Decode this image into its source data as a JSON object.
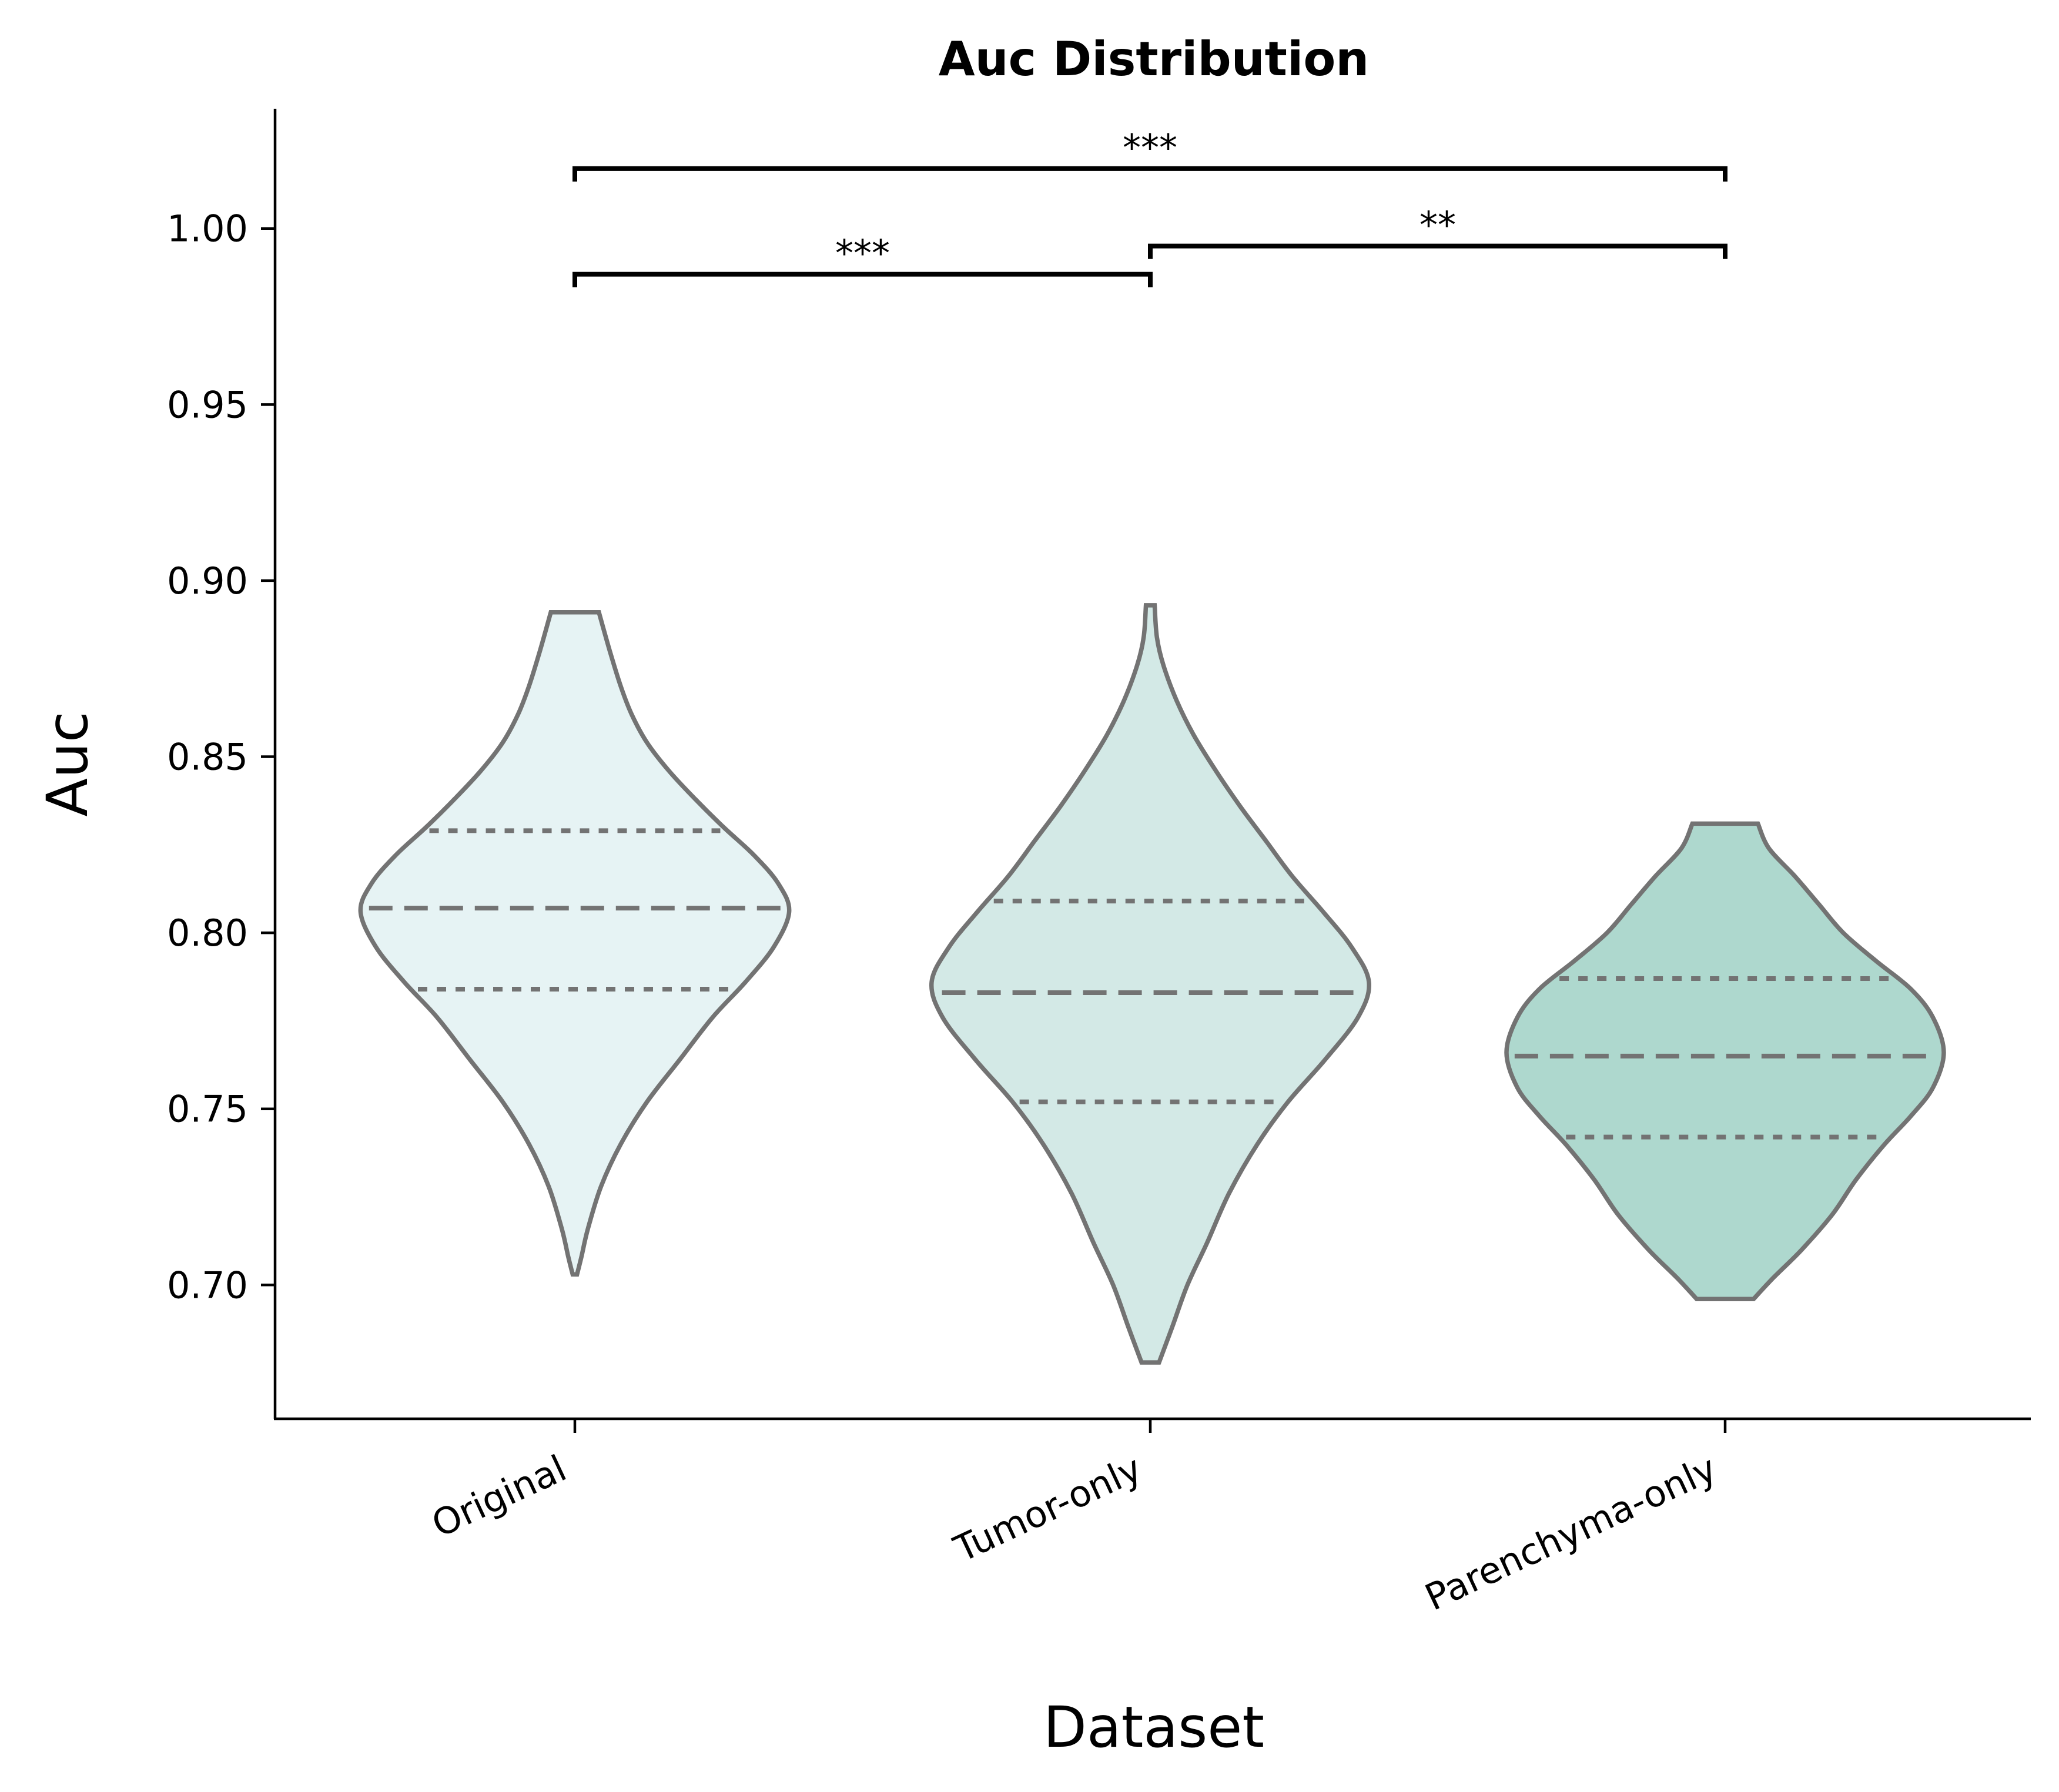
{
  "chart_data": {
    "type": "violin",
    "title": "Auc Distribution",
    "xlabel": "Dataset",
    "ylabel": "Auc",
    "ylim": [
      0.662,
      1.034
    ],
    "yticks": [
      "0.70",
      "0.75",
      "0.80",
      "0.85",
      "0.90",
      "0.95",
      "1.00"
    ],
    "grid": false,
    "categories": [
      "Original",
      "Tumor-only",
      "Parenchyma-only"
    ],
    "series": [
      {
        "category": "Original",
        "color": "#e6f3f4",
        "min": 0.703,
        "max": 0.891,
        "q1": 0.784,
        "median": 0.807,
        "q3": 0.829,
        "density_profile": [
          [
            0.703,
            0.01
          ],
          [
            0.708,
            0.03
          ],
          [
            0.716,
            0.06
          ],
          [
            0.728,
            0.12
          ],
          [
            0.74,
            0.21
          ],
          [
            0.752,
            0.33
          ],
          [
            0.764,
            0.48
          ],
          [
            0.776,
            0.63
          ],
          [
            0.786,
            0.78
          ],
          [
            0.796,
            0.91
          ],
          [
            0.806,
            0.98
          ],
          [
            0.814,
            0.93
          ],
          [
            0.822,
            0.82
          ],
          [
            0.83,
            0.68
          ],
          [
            0.838,
            0.55
          ],
          [
            0.846,
            0.43
          ],
          [
            0.854,
            0.33
          ],
          [
            0.862,
            0.26
          ],
          [
            0.87,
            0.21
          ],
          [
            0.88,
            0.16
          ],
          [
            0.891,
            0.11
          ]
        ]
      },
      {
        "category": "Tumor-only",
        "color": "#d3e9e6",
        "min": 0.678,
        "max": 0.893,
        "q1": 0.752,
        "median": 0.783,
        "q3": 0.809,
        "density_profile": [
          [
            0.678,
            0.04
          ],
          [
            0.688,
            0.1
          ],
          [
            0.7,
            0.17
          ],
          [
            0.712,
            0.26
          ],
          [
            0.726,
            0.36
          ],
          [
            0.74,
            0.49
          ],
          [
            0.752,
            0.63
          ],
          [
            0.764,
            0.8
          ],
          [
            0.776,
            0.95
          ],
          [
            0.786,
            1.0
          ],
          [
            0.796,
            0.92
          ],
          [
            0.806,
            0.79
          ],
          [
            0.816,
            0.65
          ],
          [
            0.826,
            0.53
          ],
          [
            0.836,
            0.41
          ],
          [
            0.846,
            0.3
          ],
          [
            0.856,
            0.2
          ],
          [
            0.866,
            0.12
          ],
          [
            0.876,
            0.06
          ],
          [
            0.884,
            0.03
          ],
          [
            0.893,
            0.02
          ]
        ]
      },
      {
        "category": "Parenchyma-only",
        "color": "#aed8ce",
        "min": 0.696,
        "max": 0.831,
        "q1": 0.742,
        "median": 0.765,
        "q3": 0.787,
        "density_profile": [
          [
            0.696,
            0.13
          ],
          [
            0.702,
            0.22
          ],
          [
            0.71,
            0.35
          ],
          [
            0.72,
            0.49
          ],
          [
            0.73,
            0.6
          ],
          [
            0.74,
            0.73
          ],
          [
            0.748,
            0.85
          ],
          [
            0.756,
            0.95
          ],
          [
            0.766,
            1.0
          ],
          [
            0.776,
            0.95
          ],
          [
            0.784,
            0.85
          ],
          [
            0.792,
            0.69
          ],
          [
            0.8,
            0.54
          ],
          [
            0.808,
            0.43
          ],
          [
            0.816,
            0.32
          ],
          [
            0.824,
            0.2
          ],
          [
            0.831,
            0.15
          ]
        ]
      }
    ],
    "annotations": [
      {
        "from": "Original",
        "to": "Tumor-only",
        "y": 0.987,
        "label": "***"
      },
      {
        "from": "Tumor-only",
        "to": "Parenchyma-only",
        "y": 0.995,
        "label": "**"
      },
      {
        "from": "Original",
        "to": "Parenchyma-only",
        "y": 1.017,
        "label": "***"
      }
    ],
    "outline_color": "#737373"
  }
}
